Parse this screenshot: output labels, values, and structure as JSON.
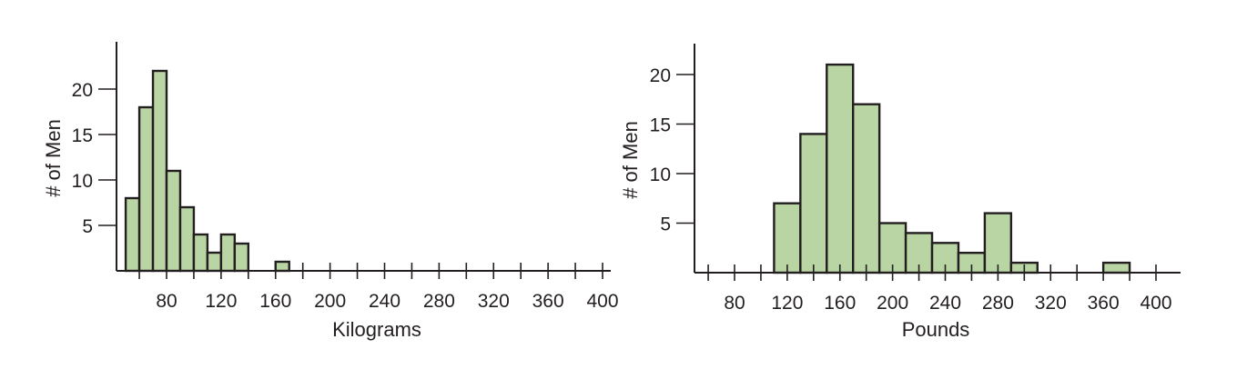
{
  "chart_data": [
    {
      "type": "bar",
      "xlabel": "Kilograms",
      "ylabel": "# of Men",
      "bin_width": 10,
      "bin_starts": [
        50,
        60,
        70,
        80,
        90,
        100,
        110,
        120,
        130,
        160
      ],
      "values": [
        8,
        18,
        22,
        11,
        7,
        4,
        2,
        4,
        3,
        1
      ],
      "xlim": [
        40,
        405
      ],
      "ylim": [
        0,
        25
      ],
      "x_ticks": [
        80,
        120,
        160,
        200,
        240,
        280,
        320,
        360,
        400
      ],
      "y_ticks": [
        5,
        10,
        15,
        20
      ],
      "bar_color": "#b9d5a3",
      "edge_color": "#231f20"
    },
    {
      "type": "bar",
      "xlabel": "Pounds",
      "ylabel": "# of Men",
      "bin_width": 20,
      "bin_starts": [
        110,
        130,
        150,
        170,
        190,
        210,
        230,
        250,
        270,
        290,
        360
      ],
      "values": [
        7,
        14,
        21,
        17,
        5,
        4,
        3,
        2,
        6,
        1,
        1
      ],
      "xlim": [
        50,
        420
      ],
      "ylim": [
        0,
        22
      ],
      "x_ticks": [
        80,
        120,
        160,
        200,
        240,
        280,
        320,
        360,
        400
      ],
      "y_ticks": [
        5,
        10,
        15,
        20
      ],
      "bar_color": "#b9d5a3",
      "edge_color": "#231f20"
    }
  ]
}
